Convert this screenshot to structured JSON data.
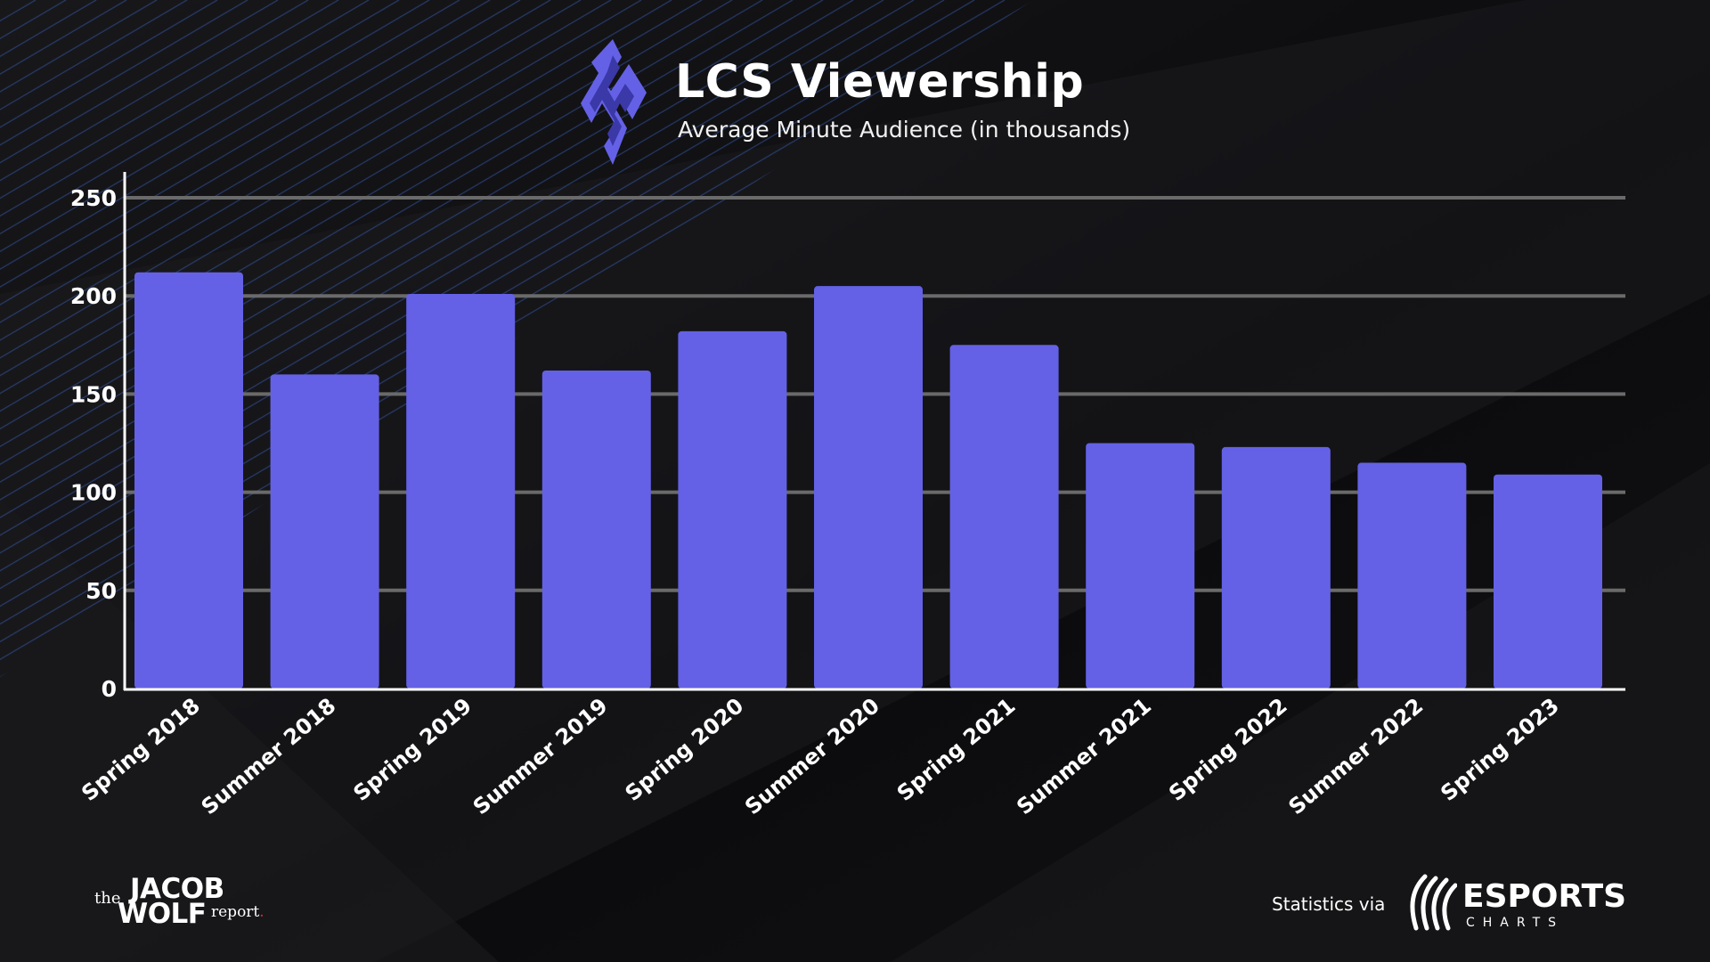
{
  "header": {
    "title": "LCS Viewership",
    "subtitle": "Average Minute Audience (in thousands)"
  },
  "chart_data": {
    "type": "bar",
    "title": "LCS Viewership",
    "subtitle": "Average Minute Audience (in thousands)",
    "xlabel": "",
    "ylabel": "",
    "categories": [
      "Spring 2018",
      "Summer 2018",
      "Spring 2019",
      "Summer 2019",
      "Spring 2020",
      "Summer 2020",
      "Spring 2021",
      "Summer 2021",
      "Spring 2022",
      "Summer 2022",
      "Spring 2023"
    ],
    "values": [
      212,
      160,
      201,
      162,
      182,
      205,
      175,
      125,
      123,
      115,
      109
    ],
    "ylim": [
      0,
      250
    ],
    "yticks": [
      0,
      50,
      100,
      150,
      200,
      250
    ],
    "grid": true,
    "bar_color": "#6461e6"
  },
  "footer": {
    "brand_the": "the",
    "brand_jacob": "JACOB",
    "brand_wolf": "WOLF",
    "brand_report": "report",
    "brand_dot": ".",
    "stats_label": "Statistics via",
    "source_name": "ESPORTS",
    "source_sub": "CHARTS"
  },
  "colors": {
    "background": "#0d0d0f",
    "accent": "#6461e6",
    "grid": "#6a6a6a",
    "axis": "#ffffff",
    "stripes": "#3f6fd8"
  }
}
